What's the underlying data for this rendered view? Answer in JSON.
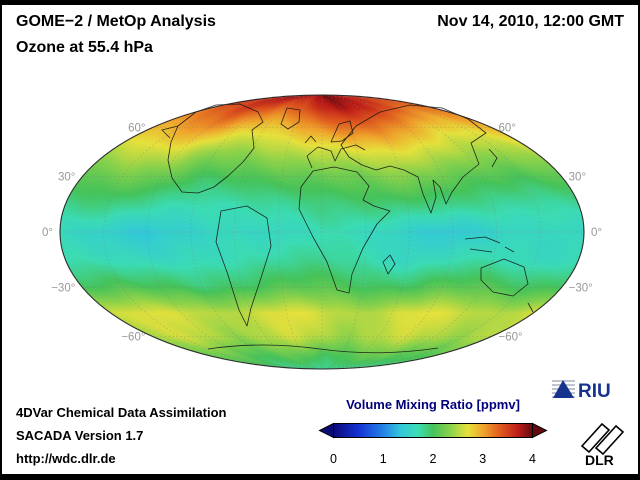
{
  "frame": {
    "border_color": "#000000",
    "background": "#ffffff"
  },
  "header": {
    "title": "GOME−2 / MetOp Analysis",
    "subtitle": "Ozone at 55.4 hPa",
    "datetime": "Nov 14, 2010, 12:00 GMT"
  },
  "map": {
    "lat_labels": [
      {
        "lat": 60,
        "text": "60°"
      },
      {
        "lat": 30,
        "text": "30°"
      },
      {
        "lat": 0,
        "text": "0°"
      },
      {
        "lat": -30,
        "text": "−30°"
      },
      {
        "lat": -60,
        "text": "−60°"
      }
    ],
    "label_color": "#989898",
    "graticule_color": "#808080",
    "coastline_color": "#141414",
    "outline_color": "#2a2a2a"
  },
  "colorbar": {
    "title": "Volume Mixing Ratio [ppmv]",
    "title_color": "#00007d",
    "ticks": [
      "0",
      "1",
      "2",
      "3",
      "4"
    ],
    "min": 0,
    "max": 4
  },
  "footer": {
    "lines": [
      "4DVar Chemical Data Assimilation",
      "SACADA Version 1.7",
      "http://wdc.dlr.de"
    ]
  },
  "logos": {
    "riu": {
      "text": "RIU",
      "color": "#16338e",
      "stripe_color": "#97a2b2"
    },
    "dlr": {
      "text": "DLR",
      "color": "#000000"
    }
  },
  "chart_data": {
    "type": "heatmap",
    "projection": "mollweide",
    "title": "GOME−2 / MetOp Analysis",
    "subtitle": "Ozone at 55.4 hPa",
    "datetime": "Nov 14, 2010, 12:00 GMT",
    "colorbar_title": "Volume Mixing Ratio [ppmv]",
    "units": "ppmv",
    "value_range": [
      0,
      4
    ],
    "lat_ticks": [
      60,
      30,
      0,
      -30,
      -60
    ],
    "lats": [
      90,
      75,
      60,
      45,
      30,
      15,
      0,
      -15,
      -30,
      -45,
      -60,
      -75,
      -90
    ],
    "lons": [
      -180,
      -150,
      -120,
      -90,
      -60,
      -30,
      0,
      30,
      60,
      90,
      120,
      150,
      180
    ],
    "values": [
      [
        3.7,
        3.8,
        3.9,
        3.9,
        3.8,
        3.8,
        3.9,
        4.0,
        3.9,
        3.8,
        3.7,
        3.6,
        3.7
      ],
      [
        3.3,
        3.4,
        3.5,
        3.4,
        3.3,
        3.4,
        3.6,
        3.8,
        3.7,
        3.5,
        3.3,
        3.2,
        3.3
      ],
      [
        2.9,
        3.0,
        3.1,
        2.9,
        2.8,
        2.9,
        3.1,
        3.3,
        3.2,
        3.0,
        2.8,
        2.8,
        2.9
      ],
      [
        2.5,
        2.6,
        2.6,
        2.4,
        2.4,
        2.5,
        2.6,
        2.7,
        2.7,
        2.6,
        2.5,
        2.4,
        2.5
      ],
      [
        2.1,
        2.2,
        2.2,
        2.0,
        2.0,
        2.1,
        2.2,
        2.2,
        2.3,
        2.2,
        2.1,
        2.0,
        2.1
      ],
      [
        1.8,
        1.9,
        1.8,
        1.7,
        1.7,
        1.8,
        1.9,
        1.9,
        1.9,
        1.9,
        1.8,
        1.7,
        1.8
      ],
      [
        1.6,
        1.5,
        1.4,
        1.5,
        1.6,
        1.6,
        1.7,
        1.6,
        1.5,
        1.4,
        1.5,
        1.6,
        1.6
      ],
      [
        1.7,
        1.7,
        1.6,
        1.6,
        1.7,
        1.8,
        1.8,
        1.7,
        1.6,
        1.7,
        1.7,
        1.6,
        1.7
      ],
      [
        2.0,
        2.1,
        2.0,
        1.9,
        2.0,
        2.1,
        2.1,
        2.0,
        2.0,
        2.1,
        2.1,
        2.0,
        2.0
      ],
      [
        2.6,
        2.7,
        2.6,
        2.5,
        2.6,
        2.7,
        2.6,
        2.5,
        2.6,
        2.7,
        2.6,
        2.5,
        2.6
      ],
      [
        2.5,
        2.6,
        2.5,
        2.4,
        2.5,
        2.6,
        2.5,
        2.4,
        2.5,
        2.6,
        2.5,
        2.4,
        2.5
      ],
      [
        2.1,
        2.2,
        2.1,
        2.0,
        2.1,
        2.1,
        2.0,
        2.0,
        2.1,
        2.2,
        2.1,
        2.0,
        2.1
      ],
      [
        1.8,
        1.8,
        1.8,
        1.8,
        1.8,
        1.8,
        1.8,
        1.8,
        1.8,
        1.8,
        1.8,
        1.8,
        1.8
      ]
    ],
    "colormap": [
      [
        0.0,
        "#0a0a78"
      ],
      [
        0.5,
        "#1432d2"
      ],
      [
        1.0,
        "#2382e6"
      ],
      [
        1.35,
        "#32c8dc"
      ],
      [
        1.7,
        "#3cdcb4"
      ],
      [
        2.0,
        "#46c35a"
      ],
      [
        2.35,
        "#8cd24b"
      ],
      [
        2.7,
        "#e6e13c"
      ],
      [
        3.0,
        "#f0a52d"
      ],
      [
        3.35,
        "#e05a1e"
      ],
      [
        3.7,
        "#be1e19"
      ],
      [
        4.0,
        "#640a0f"
      ]
    ],
    "legend_position": "bottom-center",
    "grid": true
  }
}
